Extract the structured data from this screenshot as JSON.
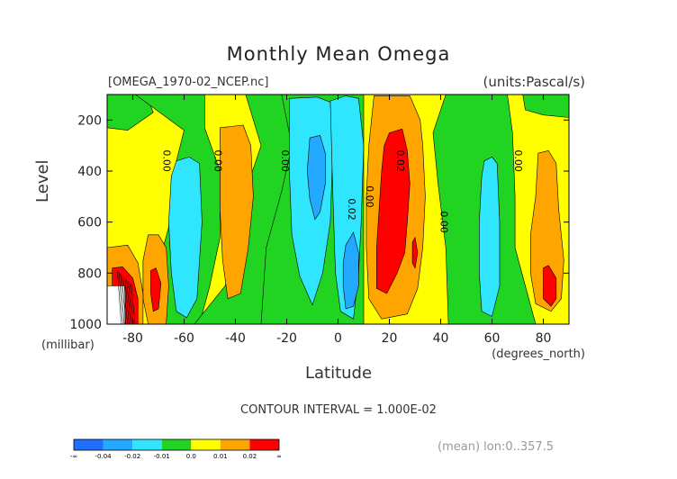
{
  "chart_data": {
    "type": "heatmap",
    "title": "Monthly Mean Omega",
    "subtitle_left": "[OMEGA_1970-02_NCEP.nc]",
    "subtitle_right": "(units:Pascal/s)",
    "xlabel": "Latitude",
    "xunit_label": "(degrees_north)",
    "ylabel": "Level",
    "yunit_label": "(millibar)",
    "xlim": [
      -90,
      90
    ],
    "ylim": [
      1000,
      100
    ],
    "x_ticks": [
      -80,
      -60,
      -40,
      -20,
      0,
      20,
      40,
      60,
      80
    ],
    "y_ticks": [
      200,
      400,
      600,
      800,
      1000
    ],
    "x_tick_labels": [
      "-80",
      "-60",
      "-40",
      "-20",
      "0",
      "20",
      "40",
      "60",
      "80"
    ],
    "y_tick_labels": [
      "200",
      "400",
      "600",
      "800",
      "1000"
    ],
    "contour_interval_text": "CONTOUR INTERVAL = 1.000E-02",
    "footer_text": "(mean) lon:0..357.5",
    "contour_labels": [
      {
        "text": "0.00",
        "lat": -68,
        "level": 360
      },
      {
        "text": "0.00",
        "lat": -48,
        "level": 360
      },
      {
        "text": "0.00",
        "lat": -22,
        "level": 360
      },
      {
        "text": "0.02",
        "lat": 23,
        "level": 360
      },
      {
        "text": "0.02",
        "lat": 4,
        "level": 550
      },
      {
        "text": "0.00",
        "lat": 11,
        "level": 500
      },
      {
        "text": "0.00",
        "lat": 40,
        "level": 600
      },
      {
        "text": "0.00",
        "lat": 69,
        "level": 360
      }
    ],
    "legend": {
      "labels": [
        "-∞",
        "-0.04",
        "-0.02",
        "-0.01",
        "0.0",
        "0.01",
        "0.02",
        "∞"
      ],
      "colors": [
        "#1f6fff",
        "#23a9ff",
        "#30e6ff",
        "#21d421",
        "#ffff00",
        "#ffa500",
        "#ff0000"
      ]
    },
    "region_colors": {
      "strong_down": "#ff0000",
      "down": "#ffa500",
      "weak_down": "#ffff00",
      "neutral": "#21d421",
      "weak_up": "#30e6ff",
      "up": "#23a9ff",
      "strong_up": "#1f6fff"
    }
  }
}
